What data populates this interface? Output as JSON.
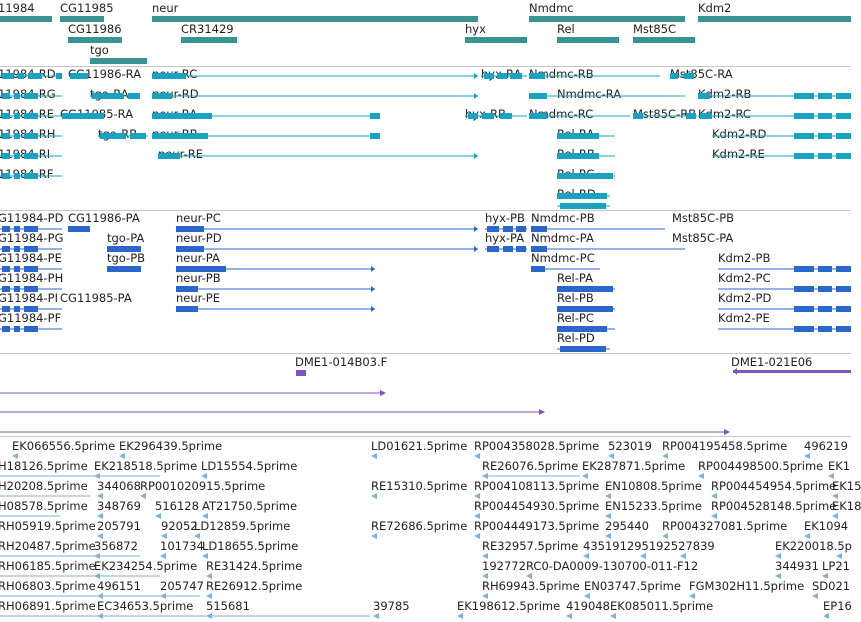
{
  "colors": {
    "gene": "#3a9393",
    "mrna_curated": "#1aa3c0",
    "mrna_predicted": "#2a66cc",
    "clone": "#7e54bb",
    "est": "#7fb1d9",
    "separator": "#c8c8c8"
  },
  "genes": {
    "labels": [
      "11984",
      "CG11985",
      "CG11986",
      "tgo",
      "neur",
      "CR31429",
      "hyx",
      "Nmdmc",
      "Rel",
      "Mst85C",
      "Kdm2"
    ]
  },
  "curated_transcripts": {
    "labels": [
      "11984-RD",
      "CG11986-RA",
      "neur-RC",
      "hyx-RA",
      "Nmdmc-RB",
      "Mst85C-RA",
      "11984-RG",
      "tgo-RA",
      "neur-RD",
      "Nmdmc-RA",
      "Kdm2-RB",
      "11984-RE",
      "CG11985-RA",
      "neur-RA",
      "hyx-RB",
      "Nmdmc-RC",
      "Mst85C-RB",
      "Kdm2-RC",
      "11984-RH",
      "tgo-RB",
      "neur-RB",
      "Rel-RA",
      "Kdm2-RD",
      "11984-RI",
      "neur-RE",
      "Rel-RB",
      "Kdm2-RE",
      "11984-RF",
      "Rel-RC",
      "Rel-RD"
    ]
  },
  "predicted_transcripts": {
    "labels": [
      "G11984-PD",
      "CG11986-PA",
      "neur-PC",
      "hyx-PB",
      "Nmdmc-PB",
      "Mst85C-PB",
      "G11984-PG",
      "tgo-PA",
      "neur-PD",
      "hyx-PA",
      "Nmdmc-PA",
      "Mst85C-PA",
      "G11984-PE",
      "tgo-PB",
      "neur-PA",
      "Nmdmc-PC",
      "Kdm2-PB",
      "G11984-PH",
      "neur-PB",
      "Rel-PA",
      "Kdm2-PC",
      "G11984-PI",
      "CG11985-PA",
      "neur-PE",
      "Rel-PB",
      "Kdm2-PD",
      "G11984-PF",
      "Rel-PC",
      "Kdm2-PE",
      "Rel-PD"
    ]
  },
  "clones": {
    "labels": [
      "DME1-014B03.F",
      "DME1-021E06"
    ]
  },
  "ests": {
    "labels": [
      "EK066556.5prime",
      "EK296439.5prime",
      "LD01621.5prime",
      "RP004358028.5prime",
      "523019",
      "RP004195458.5prime",
      "496219",
      "H18126.5prime",
      "EK218518.5prime",
      "LD15554.5prime",
      "RE26076.5prime",
      "EK287871.5prime",
      "RP004498500.5prime",
      "EK1",
      "H20208.5prime",
      "344068",
      "RP001020915.5prime",
      "RE15310.5prime",
      "RP004108113.5prime",
      "EN10808.5prime",
      "RP004454954.5prime",
      "EK15",
      "H08578.5prime",
      "348769",
      "516128",
      "AT21750.5prime",
      "RP004454930.5prime",
      "EN15233.5prime",
      "RP004528148.5prime",
      "EK18",
      "RH05919.5prime",
      "205791",
      "92052",
      "LD12859.5prime",
      "RE72686.5prime",
      "RP004449173.5prime",
      "295440",
      "RP004327081.5prime",
      "EK1094",
      "RH20487.5prime",
      "356872",
      "101734",
      "LD18655.5prime",
      "RE32957.5prime",
      "435191295192527839",
      "EK220018.5p",
      "RH06185.5prime",
      "EK234254.5prime",
      "RE31424.5prime",
      "192772",
      "RC0-DA0009-130700-011-F12",
      "344931",
      "LP21",
      "RH06803.5prime",
      "496151",
      "205747",
      "RE26912.5prime",
      "RH69943.5prime",
      "EN03747.5prime",
      "FGM302H11.5prime",
      "SD021",
      "RH06891.5prime",
      "EC34653.5prime",
      "515681",
      "39785",
      "EK198612.5prime",
      "419048",
      "EK085011.5prime",
      "EP16"
    ]
  }
}
